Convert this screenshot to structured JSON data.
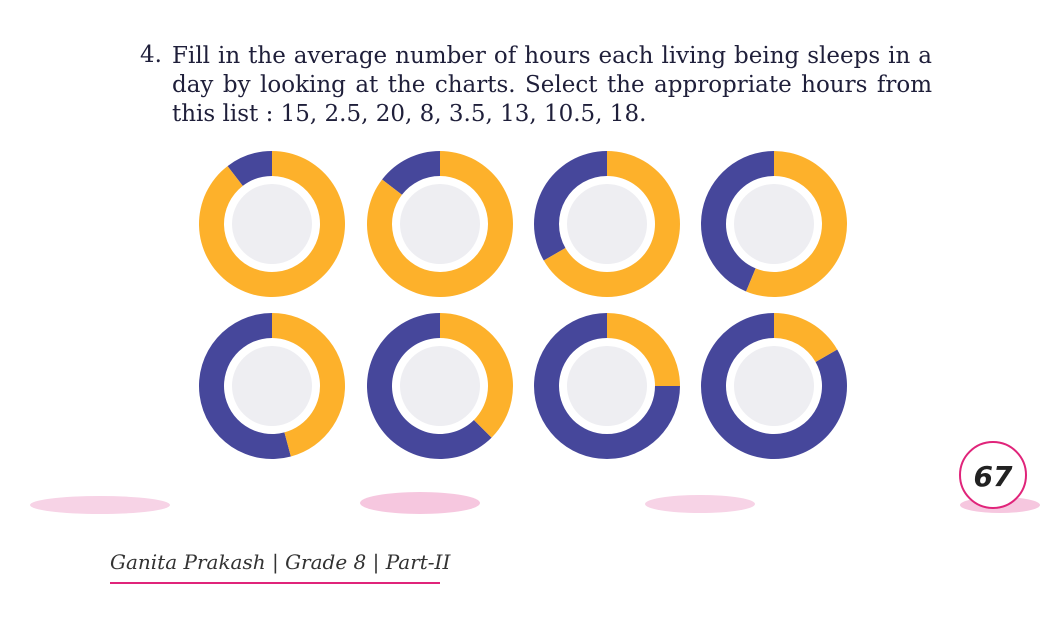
{
  "question": {
    "number": "4.",
    "text": "Fill in the average number of hours each living being sleeps in a day by looking at the charts. Select the appropriate hours from this list : 15, 2.5, 20, 8, 3.5, 13, 10.5, 18."
  },
  "charts": [
    {
      "sleep": 2.5,
      "awake": 21.5
    },
    {
      "sleep": 3.5,
      "awake": 20.5
    },
    {
      "sleep": 8,
      "awake": 16
    },
    {
      "sleep": 10.5,
      "awake": 13.5
    },
    {
      "sleep": 13,
      "awake": 11
    },
    {
      "sleep": 15,
      "awake": 9
    },
    {
      "sleep": 18,
      "awake": 6
    },
    {
      "sleep": 20,
      "awake": 4
    }
  ],
  "colors": {
    "sleep": "#46479b",
    "awake": "#fdb12b"
  },
  "page_number": "67",
  "footer": "Ganita Prakash | Grade 8 | Part-II"
}
